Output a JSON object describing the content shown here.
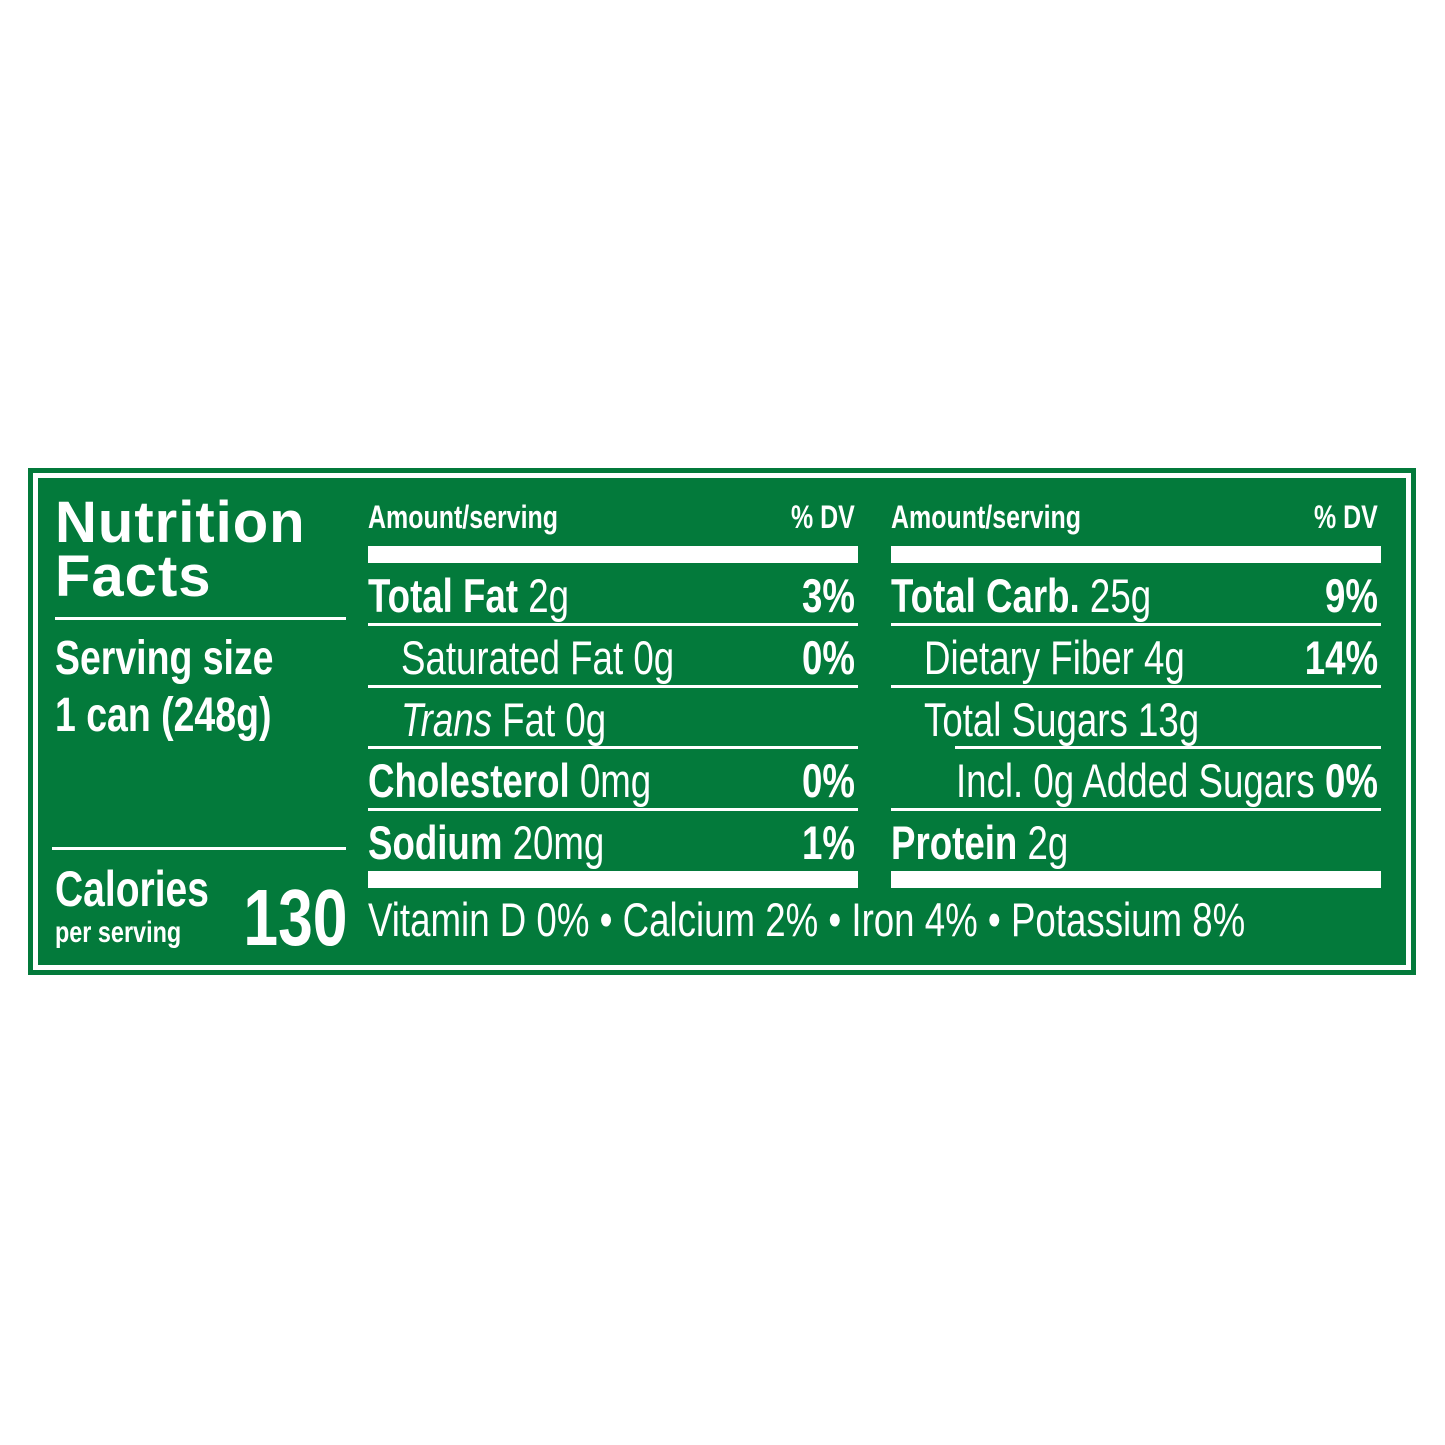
{
  "label": {
    "title_line1": "Nutrition",
    "title_line2": "Facts",
    "serving_size_label": "Serving size",
    "serving_size_value": "1 can (248g)",
    "calories_label": "Calories",
    "calories_sub": "per serving",
    "calories_value": "130",
    "brand_color": "#037a3b",
    "left_table": {
      "header_amount": "Amount/serving",
      "header_dv": "% DV",
      "rows": [
        {
          "name": "Total Fat",
          "amount": "2g",
          "dv": "3%"
        },
        {
          "name": "Saturated Fat",
          "amount": "0g",
          "dv": "0%"
        },
        {
          "name": "Trans",
          "name_suffix": "Fat",
          "amount": "0g",
          "dv": ""
        },
        {
          "name": "Cholesterol",
          "amount": "0mg",
          "dv": "0%"
        },
        {
          "name": "Sodium",
          "amount": "20mg",
          "dv": "1%"
        }
      ]
    },
    "right_table": {
      "header_amount": "Amount/serving",
      "header_dv": "% DV",
      "rows": [
        {
          "name": "Total Carb.",
          "amount": "25g",
          "dv": "9%"
        },
        {
          "name": "Dietary Fiber",
          "amount": "4g",
          "dv": "14%"
        },
        {
          "name": "Total Sugars",
          "amount": "13g",
          "dv": ""
        },
        {
          "name": "Incl. 0g Added Sugars",
          "amount": "",
          "dv": "0%"
        },
        {
          "name": "Protein",
          "amount": "2g",
          "dv": ""
        }
      ]
    },
    "micronutrients": "Vitamin D 0% • Calcium 2% • Iron 4% • Potassium 8%"
  }
}
